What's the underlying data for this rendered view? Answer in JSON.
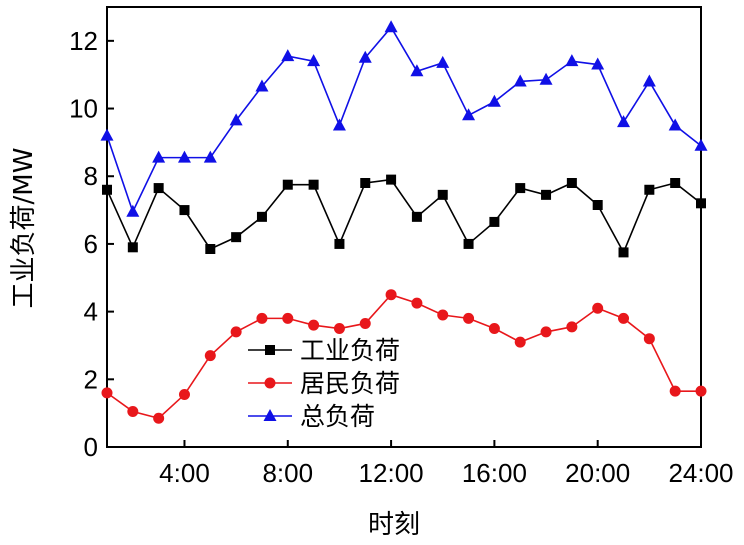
{
  "chart_data": {
    "type": "line",
    "title": "",
    "xlabel": "时刻",
    "ylabel": "工业负荷/MW",
    "x": [
      1,
      2,
      3,
      4,
      5,
      6,
      7,
      8,
      9,
      10,
      11,
      12,
      13,
      14,
      15,
      16,
      17,
      18,
      19,
      20,
      21,
      22,
      23,
      24
    ],
    "xlim": [
      1,
      24
    ],
    "ylim": [
      0,
      13
    ],
    "xticks": [
      4,
      8,
      12,
      16,
      20,
      24
    ],
    "xtick_labels": [
      "4:00",
      "8:00",
      "12:00",
      "16:00",
      "20:00",
      "24:00"
    ],
    "yticks": [
      0,
      2,
      4,
      6,
      8,
      10,
      12
    ],
    "ytick_labels": [
      "0",
      "2",
      "4",
      "6",
      "8",
      "10",
      "12"
    ],
    "grid": false,
    "legend_position": "center-left",
    "series": [
      {
        "name": "工业负荷",
        "color": "#000000",
        "marker": "square",
        "values": [
          7.6,
          5.9,
          7.65,
          7.0,
          5.85,
          6.2,
          6.8,
          7.75,
          7.75,
          6.0,
          7.8,
          7.9,
          6.8,
          7.45,
          6.0,
          6.65,
          7.65,
          7.45,
          7.8,
          7.15,
          5.75,
          7.6,
          7.8,
          7.2
        ]
      },
      {
        "name": "居民负荷",
        "color": "#e8171b",
        "marker": "circle",
        "values": [
          1.6,
          1.05,
          0.85,
          1.55,
          2.7,
          3.4,
          3.8,
          3.8,
          3.6,
          3.5,
          3.65,
          4.5,
          4.25,
          3.9,
          3.8,
          3.5,
          3.1,
          3.4,
          3.55,
          4.1,
          3.8,
          3.2,
          1.65,
          1.65
        ]
      },
      {
        "name": "总负荷",
        "color": "#1010e6",
        "marker": "triangle",
        "values": [
          9.2,
          6.95,
          8.55,
          8.55,
          8.55,
          9.65,
          10.65,
          11.55,
          11.4,
          9.5,
          11.5,
          12.4,
          11.1,
          11.35,
          9.8,
          10.2,
          10.8,
          10.85,
          11.4,
          11.3,
          9.6,
          10.8,
          9.5,
          8.9
        ]
      }
    ]
  }
}
